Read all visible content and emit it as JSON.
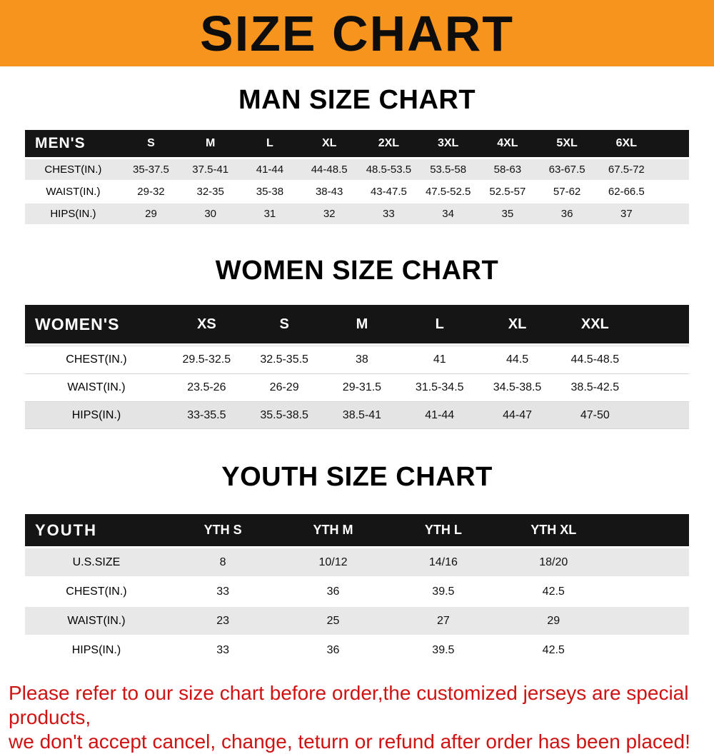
{
  "banner": {
    "title": "SIZE CHART"
  },
  "colors": {
    "banner_orange": "#f7941d",
    "table_header_black": "#151515",
    "row_stripe_gray": "#e8e8e8",
    "notice_red": "#cf1212"
  },
  "sections": [
    {
      "id": "men",
      "heading": "MAN SIZE CHART",
      "columns": [
        "MEN'S",
        "S",
        "M",
        "L",
        "XL",
        "2XL",
        "3XL",
        "4XL",
        "5XL",
        "6XL"
      ],
      "rows": [
        {
          "label": "CHEST(IN.)",
          "values": [
            "35-37.5",
            "37.5-41",
            "41-44",
            "44-48.5",
            "48.5-53.5",
            "53.5-58",
            "58-63",
            "63-67.5",
            "67.5-72"
          ]
        },
        {
          "label": "WAIST(IN.)",
          "values": [
            "29-32",
            "32-35",
            "35-38",
            "38-43",
            "43-47.5",
            "47.5-52.5",
            "52.5-57",
            "57-62",
            "62-66.5"
          ]
        },
        {
          "label": "HIPS(IN.)",
          "values": [
            "29",
            "30",
            "31",
            "32",
            "33",
            "34",
            "35",
            "36",
            "37"
          ]
        }
      ]
    },
    {
      "id": "women",
      "heading": "WOMEN SIZE CHART",
      "columns": [
        "WOMEN'S",
        "XS",
        "S",
        "M",
        "L",
        "XL",
        "XXL"
      ],
      "rows": [
        {
          "label": "CHEST(IN.)",
          "values": [
            "29.5-32.5",
            "32.5-35.5",
            "38",
            "41",
            "44.5",
            "44.5-48.5"
          ]
        },
        {
          "label": "WAIST(IN.)",
          "values": [
            "23.5-26",
            "26-29",
            "29-31.5",
            "31.5-34.5",
            "34.5-38.5",
            "38.5-42.5"
          ]
        },
        {
          "label": "HIPS(IN.)",
          "values": [
            "33-35.5",
            "35.5-38.5",
            "38.5-41",
            "41-44",
            "44-47",
            "47-50"
          ]
        }
      ]
    },
    {
      "id": "youth",
      "heading": "YOUTH SIZE CHART",
      "columns": [
        "YOUTH",
        "YTH S",
        "YTH M",
        "YTH L",
        "YTH XL"
      ],
      "rows": [
        {
          "label": "U.S.SIZE",
          "values": [
            "8",
            "10/12",
            "14/16",
            "18/20"
          ]
        },
        {
          "label": "CHEST(IN.)",
          "values": [
            "33",
            "36",
            "39.5",
            "42.5"
          ]
        },
        {
          "label": "WAIST(IN.)",
          "values": [
            "23",
            "25",
            "27",
            "29"
          ]
        },
        {
          "label": "HIPS(IN.)",
          "values": [
            "33",
            "36",
            "39.5",
            "42.5"
          ]
        }
      ]
    }
  ],
  "footer": {
    "line1": "Please refer to our size chart before order,the customized jerseys are special products,",
    "line2": "we don't accept cancel, change, teturn or refund after order has been placed!"
  }
}
